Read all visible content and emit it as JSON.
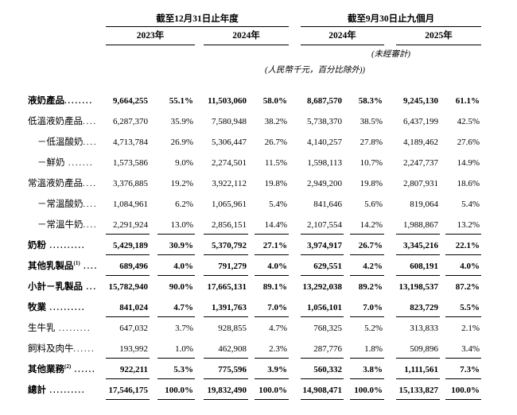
{
  "header": {
    "annual": {
      "title": "截至12月31日止年度",
      "years": [
        "2023年",
        "2024年"
      ]
    },
    "nine_month": {
      "title": "截至9月30日止九個月",
      "years": [
        "2024年",
        "2025年"
      ],
      "unaudited_note": "(未經審計)"
    },
    "unit_note": "(人民幣千元，百分比除外))"
  },
  "table": {
    "rows": [
      {
        "label": "液奶產品",
        "sup": "",
        "leader": "........",
        "indent": 0,
        "bold": true,
        "rule": "none",
        "values": [
          "9,664,255",
          "55.1%",
          "11,503,060",
          "58.0%",
          "8,687,570",
          "58.3%",
          "9,245,130",
          "61.1%"
        ]
      },
      {
        "label": "低溫液奶產品",
        "sup": "",
        "leader": "....",
        "indent": 0,
        "bold": false,
        "rule": "none",
        "values": [
          "6,287,370",
          "35.9%",
          "7,580,948",
          "38.2%",
          "5,738,370",
          "38.5%",
          "6,437,199",
          "42.5%"
        ]
      },
      {
        "label": "－低溫酸奶",
        "sup": "",
        "leader": "....",
        "indent": 1,
        "bold": false,
        "rule": "none",
        "values": [
          "4,713,784",
          "26.9%",
          "5,306,447",
          "26.7%",
          "4,140,257",
          "27.8%",
          "4,189,462",
          "27.6%"
        ]
      },
      {
        "label": "－鮮奶",
        "sup": "",
        "leader": " .......",
        "indent": 1,
        "bold": false,
        "rule": "none",
        "values": [
          "1,573,586",
          "9.0%",
          "2,274,501",
          "11.5%",
          "1,598,113",
          "10.7%",
          "2,247,737",
          "14.9%"
        ]
      },
      {
        "label": "常溫液奶產品",
        "sup": "",
        "leader": "....",
        "indent": 0,
        "bold": false,
        "rule": "none",
        "values": [
          "3,376,885",
          "19.2%",
          "3,922,112",
          "19.8%",
          "2,949,200",
          "19.8%",
          "2,807,931",
          "18.6%"
        ]
      },
      {
        "label": "－常溫酸奶",
        "sup": "",
        "leader": "....",
        "indent": 1,
        "bold": false,
        "rule": "none",
        "values": [
          "1,084,961",
          "6.2%",
          "1,065,961",
          "5.4%",
          "841,646",
          "5.6%",
          "819,064",
          "5.4%"
        ]
      },
      {
        "label": "－常溫牛奶",
        "sup": "",
        "leader": "....",
        "indent": 1,
        "bold": false,
        "rule": "single",
        "values": [
          "2,291,924",
          "13.0%",
          "2,856,151",
          "14.4%",
          "2,107,554",
          "14.2%",
          "1,988,867",
          "13.2%"
        ]
      },
      {
        "label": "奶粉",
        "sup": "",
        "leader": " ..........",
        "indent": 0,
        "bold": true,
        "rule": "single",
        "values": [
          "5,429,189",
          "30.9%",
          "5,370,792",
          "27.1%",
          "3,974,917",
          "26.7%",
          "3,345,216",
          "22.1%"
        ]
      },
      {
        "label": "其他乳製品",
        "sup": "(1)",
        "leader": " ....",
        "indent": 0,
        "bold": true,
        "rule": "single",
        "values": [
          "689,496",
          "4.0%",
          "791,279",
          "4.0%",
          "629,551",
          "4.2%",
          "608,191",
          "4.0%"
        ]
      },
      {
        "label": "小計－乳製品",
        "sup": "",
        "leader": " ...",
        "indent": 0,
        "bold": true,
        "rule": "none",
        "values": [
          "15,782,940",
          "90.0%",
          "17,665,131",
          "89.1%",
          "13,292,038",
          "89.2%",
          "13,198,537",
          "87.2%"
        ]
      },
      {
        "label": "牧業",
        "sup": "",
        "leader": " ..........",
        "indent": 0,
        "bold": true,
        "rule": "single",
        "values": [
          "841,024",
          "4.7%",
          "1,391,763",
          "7.0%",
          "1,056,101",
          "7.0%",
          "823,729",
          "5.5%"
        ]
      },
      {
        "label": "生牛乳",
        "sup": "",
        "leader": " .........",
        "indent": 0,
        "bold": false,
        "rule": "none",
        "values": [
          "647,032",
          "3.7%",
          "928,855",
          "4.7%",
          "768,325",
          "5.2%",
          "313,833",
          "2.1%"
        ]
      },
      {
        "label": "飼料及肉牛",
        "sup": "",
        "leader": "......",
        "indent": 0,
        "bold": false,
        "rule": "single",
        "values": [
          "193,992",
          "1.0%",
          "462,908",
          "2.3%",
          "287,776",
          "1.8%",
          "509,896",
          "3.4%"
        ]
      },
      {
        "label": "其他業務",
        "sup": "(2)",
        "leader": " ......",
        "indent": 0,
        "bold": true,
        "rule": "single",
        "values": [
          "922,211",
          "5.3%",
          "775,596",
          "3.9%",
          "560,332",
          "3.8%",
          "1,111,561",
          "7.3%"
        ]
      },
      {
        "label": "總計",
        "sup": "",
        "leader": " ..........",
        "indent": 0,
        "bold": true,
        "rule": "double",
        "values": [
          "17,546,175",
          "100.0%",
          "19,832,490",
          "100.0%",
          "14,908,471",
          "100.0%",
          "15,133,827",
          "100.0%"
        ]
      }
    ]
  }
}
